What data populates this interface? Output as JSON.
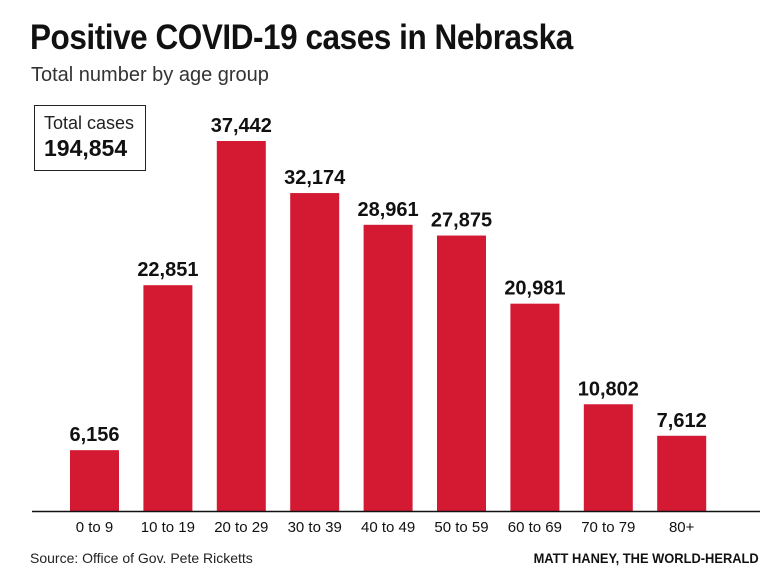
{
  "header": {
    "title": "Positive COVID-19 cases in Nebraska",
    "subtitle": "Total number by age group"
  },
  "total_box": {
    "label": "Total cases",
    "value": "194,854"
  },
  "footer": {
    "source": "Source: Office of Gov. Pete Ricketts",
    "credit": "MATT HANEY, THE WORLD-HERALD"
  },
  "colors": {
    "bar": "#d41a33",
    "axis": "#111111",
    "text": "#111111"
  },
  "chart_data": {
    "type": "bar",
    "title": "Positive COVID-19 cases in Nebraska",
    "subtitle": "Total number by age group",
    "categories": [
      "0 to 9",
      "10 to 19",
      "20 to 29",
      "30 to 39",
      "40 to 49",
      "50 to 59",
      "60 to 69",
      "70 to 79",
      "80+"
    ],
    "values": [
      6156,
      22851,
      37442,
      32174,
      28961,
      27875,
      20981,
      10802,
      7612
    ],
    "value_labels": [
      "6,156",
      "22,851",
      "37,442",
      "32,174",
      "28,961",
      "27,875",
      "20,981",
      "10,802",
      "7,612"
    ],
    "xlabel": "",
    "ylabel": "",
    "ylim": [
      0,
      37442
    ],
    "grid": false,
    "legend": "none"
  }
}
